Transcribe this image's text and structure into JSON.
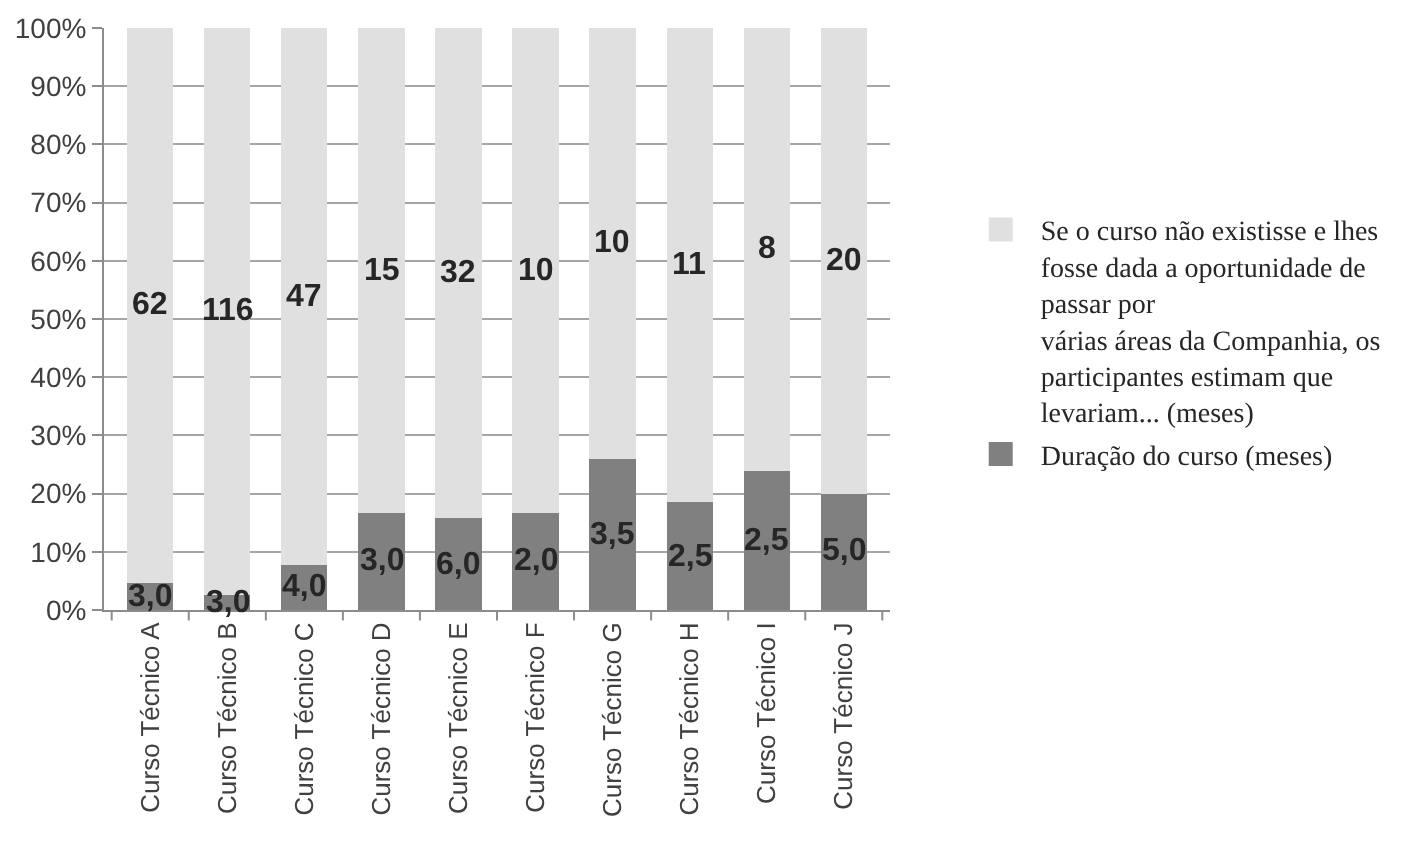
{
  "chart_data": {
    "type": "bar",
    "stacked": true,
    "categories": [
      "Curso Técnico A",
      "Curso Técnico B",
      "Curso Técnico C",
      "Curso Técnico D",
      "Curso Técnico E",
      "Curso Técnico F",
      "Curso Técnico G",
      "Curso Técnico H",
      "Curso Técnico I",
      "Curso Técnico J"
    ],
    "series": [
      {
        "name": "Duração do curso (meses)",
        "color": "#808080",
        "values": [
          4.6,
          2.5,
          7.8,
          16.7,
          15.8,
          16.7,
          25.9,
          18.5,
          23.8,
          20.0
        ]
      },
      {
        "name": "Se o curso não existisse e lhes fosse dada a oportunidade de passar por\nvárias áreas da Companhia, os participantes estimam que levariam... (meses)",
        "color": "#e0e0e0",
        "values": [
          95.4,
          97.5,
          92.2,
          83.3,
          84.2,
          83.3,
          74.1,
          81.5,
          76.2,
          80.0
        ]
      }
    ],
    "annotations": [
      "3,0",
      "62",
      "3,0",
      "116",
      "4,0",
      "47",
      "3,0",
      "15",
      "6,0",
      "32",
      "2,0",
      "10",
      "3,5",
      "10",
      "2,5",
      "11",
      "2,5",
      "8",
      "5,0",
      "20"
    ],
    "ylim": [
      0,
      100
    ],
    "yticks": [
      {
        "value": 0,
        "label": "0%"
      },
      {
        "value": 10,
        "label": "10%"
      },
      {
        "value": 20,
        "label": "20%"
      },
      {
        "value": 30,
        "label": "30%"
      },
      {
        "value": 40,
        "label": "40%"
      },
      {
        "value": 50,
        "label": "50%"
      },
      {
        "value": 60,
        "label": "60%"
      },
      {
        "value": 70,
        "label": "70%"
      },
      {
        "value": 80,
        "label": "80%"
      },
      {
        "value": 90,
        "label": "90%"
      },
      {
        "value": 100,
        "label": "100%"
      }
    ],
    "grid": "y",
    "legend": "right"
  }
}
